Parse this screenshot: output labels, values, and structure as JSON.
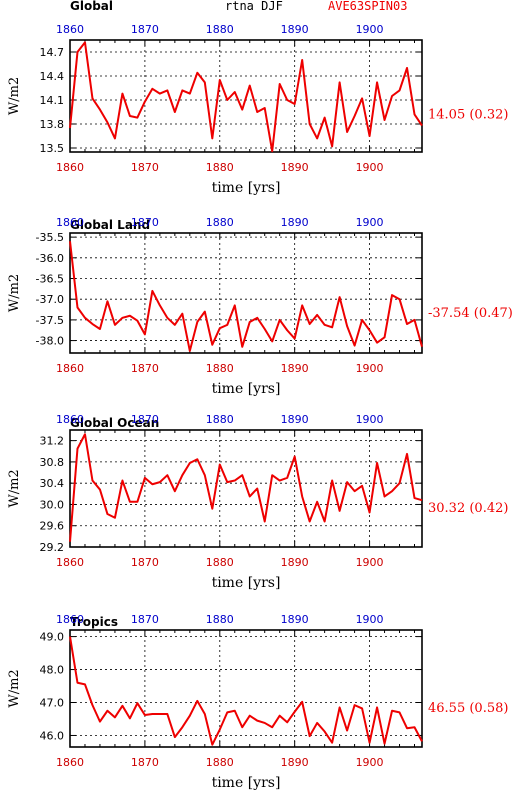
{
  "header": {
    "left": "Global",
    "center": "rtna DJF",
    "right": "AVE63SPIN03"
  },
  "colors": {
    "series": "#ee0000",
    "top_ticks": "#0000cc",
    "bottom_ticks": "#cc0000",
    "axis": "#000000"
  },
  "xlabel": "time [yrs]",
  "ylabel": "W/m2",
  "chart_data": [
    {
      "type": "line",
      "panel_title": "",
      "annotation": "14.05 (0.32)",
      "x_start": 1860,
      "x_ticks": [
        "1860",
        "1870",
        "1880",
        "1890",
        "1900"
      ],
      "xlim": [
        1860,
        1907
      ],
      "ylim": [
        13.45,
        14.85
      ],
      "y_ticks": [
        "13.5",
        "13.8",
        "14.1",
        "14.4",
        "14.7"
      ],
      "y_tick_values": [
        13.5,
        13.8,
        14.1,
        14.4,
        14.7
      ],
      "series": [
        {
          "values": [
            13.75,
            14.7,
            14.82,
            14.12,
            13.98,
            13.82,
            13.62,
            14.18,
            13.9,
            13.88,
            14.08,
            14.24,
            14.18,
            14.22,
            13.95,
            14.22,
            14.18,
            14.44,
            14.32,
            13.62,
            14.35,
            14.1,
            14.2,
            13.98,
            14.28,
            13.95,
            14.0,
            13.46,
            14.3,
            14.1,
            14.05,
            14.6,
            13.8,
            13.62,
            13.88,
            13.52,
            14.32,
            13.7,
            13.9,
            14.12,
            13.65,
            14.32,
            13.85,
            14.15,
            14.22,
            14.5,
            13.92,
            13.78
          ]
        }
      ]
    },
    {
      "type": "line",
      "panel_title": "Global Land",
      "annotation": "-37.54 (0.47)",
      "x_start": 1860,
      "x_ticks": [
        "1860",
        "1870",
        "1880",
        "1890",
        "1900"
      ],
      "xlim": [
        1860,
        1907
      ],
      "ylim": [
        -38.3,
        -35.4
      ],
      "y_ticks": [
        "-38.0",
        "-37.5",
        "-37.0",
        "-36.5",
        "-36.0",
        "-35.5"
      ],
      "y_tick_values": [
        -38.0,
        -37.5,
        -37.0,
        -36.5,
        -36.0,
        -35.5
      ],
      "series": [
        {
          "values": [
            -35.6,
            -37.2,
            -37.45,
            -37.6,
            -37.72,
            -37.05,
            -37.62,
            -37.45,
            -37.4,
            -37.52,
            -37.85,
            -36.8,
            -37.15,
            -37.45,
            -37.62,
            -37.35,
            -38.25,
            -37.55,
            -37.3,
            -38.1,
            -37.7,
            -37.62,
            -37.15,
            -38.15,
            -37.55,
            -37.45,
            -37.72,
            -38.02,
            -37.5,
            -37.75,
            -37.95,
            -37.15,
            -37.6,
            -37.38,
            -37.62,
            -37.68,
            -36.95,
            -37.65,
            -38.12,
            -37.5,
            -37.75,
            -38.05,
            -37.92,
            -36.9,
            -37.0,
            -37.6,
            -37.5,
            -38.15
          ]
        }
      ]
    },
    {
      "type": "line",
      "panel_title": "Global Ocean",
      "annotation": "30.32 (0.42)",
      "x_start": 1860,
      "x_ticks": [
        "1860",
        "1870",
        "1880",
        "1890",
        "1900"
      ],
      "xlim": [
        1860,
        1907
      ],
      "ylim": [
        29.2,
        31.4
      ],
      "y_ticks": [
        "29.2",
        "29.6",
        "30.0",
        "30.4",
        "30.8",
        "31.2"
      ],
      "y_tick_values": [
        29.2,
        29.6,
        30.0,
        30.4,
        30.8,
        31.2
      ],
      "series": [
        {
          "values": [
            29.3,
            31.05,
            31.32,
            30.45,
            30.28,
            29.82,
            29.75,
            30.45,
            30.05,
            30.05,
            30.5,
            30.38,
            30.42,
            30.55,
            30.25,
            30.55,
            30.78,
            30.85,
            30.55,
            29.92,
            30.75,
            30.42,
            30.45,
            30.55,
            30.15,
            30.3,
            29.68,
            30.55,
            30.45,
            30.5,
            30.9,
            30.15,
            29.68,
            30.05,
            29.68,
            30.45,
            29.88,
            30.42,
            30.25,
            30.35,
            29.85,
            30.78,
            30.15,
            30.25,
            30.4,
            30.95,
            30.12,
            30.08
          ]
        }
      ]
    },
    {
      "type": "line",
      "panel_title": "Tropics",
      "annotation": "46.55 (0.58)",
      "x_start": 1860,
      "x_ticks": [
        "1860",
        "1870",
        "1880",
        "1890",
        "1900"
      ],
      "xlim": [
        1860,
        1907
      ],
      "ylim": [
        45.65,
        49.2
      ],
      "y_ticks": [
        "46.0",
        "47.0",
        "48.0",
        "49.0"
      ],
      "y_tick_values": [
        46.0,
        47.0,
        48.0,
        49.0
      ],
      "series": [
        {
          "values": [
            49.0,
            47.6,
            47.55,
            46.92,
            46.42,
            46.75,
            46.55,
            46.9,
            46.52,
            46.98,
            46.62,
            46.65,
            46.65,
            46.65,
            45.95,
            46.25,
            46.6,
            47.05,
            46.65,
            45.72,
            46.18,
            46.7,
            46.75,
            46.25,
            46.6,
            46.45,
            46.38,
            46.25,
            46.6,
            46.4,
            46.72,
            47.02,
            45.98,
            46.38,
            46.12,
            45.78,
            46.85,
            46.15,
            46.92,
            46.82,
            45.78,
            46.85,
            45.75,
            46.75,
            46.7,
            46.22,
            46.25,
            45.82
          ]
        }
      ]
    }
  ]
}
